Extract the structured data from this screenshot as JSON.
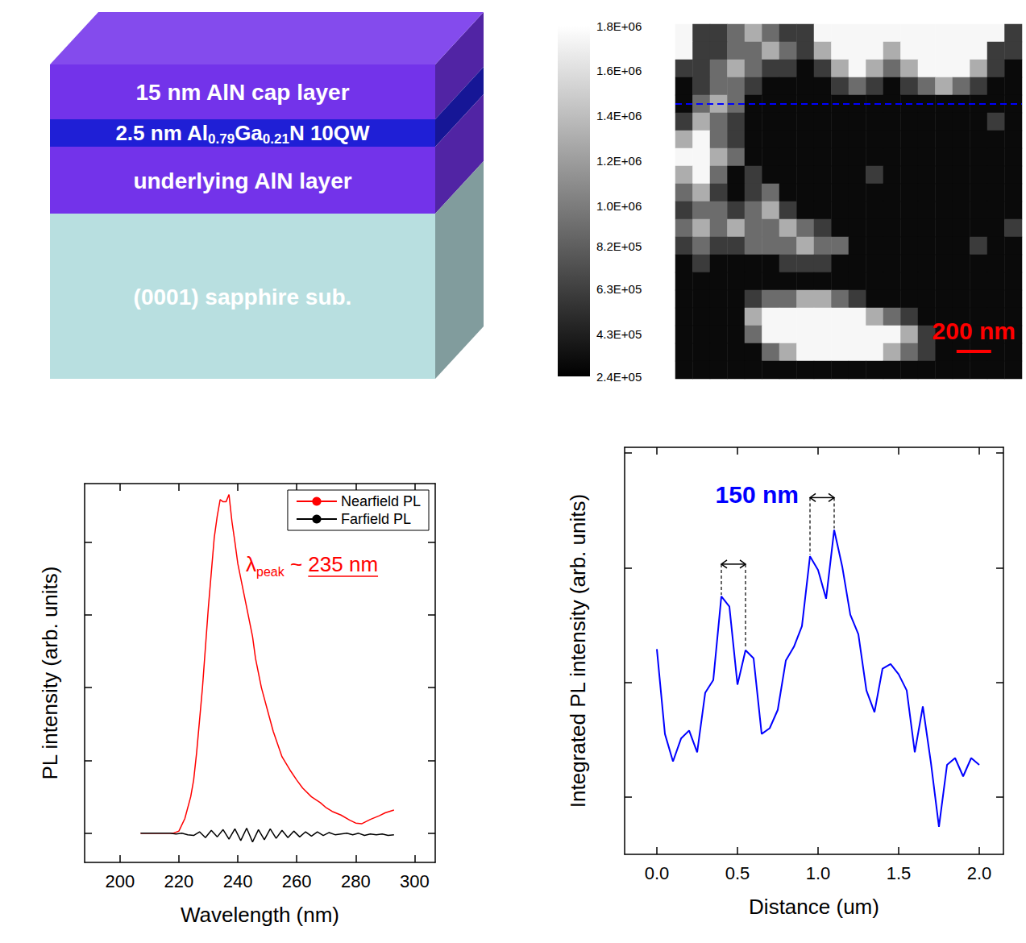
{
  "diagram": {
    "layers": [
      {
        "label_parts": [
          {
            "text": "15 nm AlN cap layer"
          }
        ],
        "color": "#7333ea"
      },
      {
        "label_parts": [
          {
            "text": "2.5 nm Al"
          },
          {
            "text": "0.79",
            "sub": true
          },
          {
            "text": "Ga"
          },
          {
            "text": "0.21",
            "sub": true
          },
          {
            "text": "N 10QW"
          }
        ],
        "color": "#1f1fd6"
      },
      {
        "label_parts": [
          {
            "text": "underlying AlN layer"
          }
        ],
        "color": "#7333ea"
      },
      {
        "label_parts": [
          {
            "text": "(0001) sapphire sub."
          }
        ],
        "color": "#b8dfe0"
      }
    ]
  },
  "chart_data": [
    {
      "type": "heatmap",
      "cell_size_nm": 100,
      "tick_labels": false,
      "cells": [
        [
          1750000,
          600000,
          600000,
          900000,
          1300000,
          900000,
          600000,
          600000,
          1750000,
          1750000,
          1750000,
          1750000,
          1750000,
          1750000,
          1750000,
          1750000,
          1750000,
          1750000,
          1750000,
          600000
        ],
        [
          1750000,
          600000,
          600000,
          900000,
          900000,
          1300000,
          900000,
          600000,
          1300000,
          1750000,
          1750000,
          1750000,
          1300000,
          1750000,
          1750000,
          1750000,
          1750000,
          1750000,
          600000,
          600000
        ],
        [
          600000,
          600000,
          900000,
          1300000,
          900000,
          600000,
          600000,
          300000,
          600000,
          1300000,
          1750000,
          1300000,
          900000,
          1300000,
          1750000,
          1750000,
          1750000,
          1300000,
          600000,
          300000
        ],
        [
          300000,
          600000,
          900000,
          900000,
          600000,
          300000,
          300000,
          300000,
          300000,
          600000,
          900000,
          600000,
          300000,
          600000,
          900000,
          1300000,
          900000,
          600000,
          300000,
          300000
        ],
        [
          300000,
          900000,
          1300000,
          900000,
          300000,
          300000,
          300000,
          300000,
          300000,
          300000,
          300000,
          300000,
          300000,
          300000,
          300000,
          300000,
          300000,
          300000,
          300000,
          300000
        ],
        [
          600000,
          1300000,
          900000,
          600000,
          300000,
          300000,
          300000,
          300000,
          300000,
          300000,
          300000,
          300000,
          300000,
          300000,
          300000,
          300000,
          300000,
          300000,
          600000,
          300000
        ],
        [
          1300000,
          1750000,
          900000,
          600000,
          300000,
          300000,
          300000,
          300000,
          300000,
          300000,
          300000,
          300000,
          300000,
          300000,
          300000,
          300000,
          300000,
          300000,
          300000,
          300000
        ],
        [
          1750000,
          1750000,
          1300000,
          900000,
          300000,
          300000,
          300000,
          300000,
          300000,
          300000,
          300000,
          300000,
          300000,
          300000,
          300000,
          300000,
          300000,
          300000,
          300000,
          300000
        ],
        [
          1300000,
          1750000,
          900000,
          300000,
          600000,
          300000,
          300000,
          300000,
          300000,
          300000,
          300000,
          600000,
          300000,
          300000,
          300000,
          300000,
          300000,
          300000,
          300000,
          300000
        ],
        [
          900000,
          1300000,
          600000,
          300000,
          600000,
          900000,
          300000,
          300000,
          300000,
          300000,
          300000,
          300000,
          300000,
          300000,
          300000,
          300000,
          300000,
          300000,
          300000,
          300000
        ],
        [
          600000,
          900000,
          900000,
          600000,
          900000,
          1300000,
          600000,
          300000,
          300000,
          300000,
          300000,
          300000,
          300000,
          300000,
          300000,
          300000,
          300000,
          300000,
          300000,
          300000
        ],
        [
          900000,
          1300000,
          900000,
          1300000,
          900000,
          900000,
          1300000,
          900000,
          600000,
          300000,
          300000,
          300000,
          300000,
          300000,
          300000,
          300000,
          300000,
          300000,
          300000,
          600000
        ],
        [
          600000,
          900000,
          600000,
          600000,
          900000,
          900000,
          900000,
          1300000,
          900000,
          900000,
          300000,
          300000,
          300000,
          300000,
          300000,
          300000,
          300000,
          600000,
          300000,
          300000
        ],
        [
          300000,
          600000,
          300000,
          300000,
          300000,
          300000,
          600000,
          600000,
          600000,
          300000,
          300000,
          300000,
          300000,
          300000,
          300000,
          300000,
          300000,
          300000,
          300000,
          300000
        ],
        [
          300000,
          300000,
          300000,
          300000,
          300000,
          300000,
          300000,
          300000,
          300000,
          300000,
          300000,
          300000,
          300000,
          300000,
          300000,
          300000,
          300000,
          300000,
          300000,
          300000
        ],
        [
          300000,
          300000,
          300000,
          300000,
          600000,
          900000,
          900000,
          1300000,
          1300000,
          900000,
          600000,
          300000,
          300000,
          300000,
          300000,
          300000,
          300000,
          300000,
          300000,
          300000
        ],
        [
          300000,
          300000,
          300000,
          300000,
          1300000,
          1750000,
          1750000,
          1750000,
          1750000,
          1750000,
          1750000,
          1300000,
          900000,
          600000,
          300000,
          300000,
          300000,
          300000,
          300000,
          300000
        ],
        [
          300000,
          300000,
          300000,
          300000,
          900000,
          1750000,
          1750000,
          1750000,
          1750000,
          1750000,
          1750000,
          1750000,
          1750000,
          1300000,
          600000,
          300000,
          300000,
          300000,
          300000,
          300000
        ],
        [
          300000,
          300000,
          300000,
          300000,
          300000,
          900000,
          1300000,
          1750000,
          1750000,
          1750000,
          1750000,
          1750000,
          1300000,
          900000,
          600000,
          300000,
          300000,
          300000,
          300000,
          300000
        ],
        [
          300000,
          300000,
          300000,
          300000,
          300000,
          300000,
          300000,
          300000,
          300000,
          300000,
          300000,
          300000,
          300000,
          300000,
          300000,
          300000,
          300000,
          300000,
          300000,
          300000
        ]
      ],
      "colorbar": {
        "range": [
          240000,
          1800000
        ],
        "ticks": [
          {
            "value": 1800000,
            "label": "1.8E+06"
          },
          {
            "value": 1600000,
            "label": "1.6E+06"
          },
          {
            "value": 1400000,
            "label": "1.4E+06"
          },
          {
            "value": 1200000,
            "label": "1.2E+06"
          },
          {
            "value": 1000000,
            "label": "1.0E+06"
          },
          {
            "value": 820000,
            "label": "8.2E+05"
          },
          {
            "value": 630000,
            "label": "6.3E+05"
          },
          {
            "value": 430000,
            "label": "4.3E+05"
          },
          {
            "value": 240000,
            "label": "2.4E+05"
          }
        ]
      },
      "scale_bar": {
        "label": "200 nm",
        "length_nm": 200,
        "color": "#ff0000"
      },
      "profile_line": {
        "y_nm": 450,
        "color": "#0000ff",
        "line_style": "dashed"
      }
    },
    {
      "type": "line",
      "x_label": "Wavelength (nm)",
      "y_label": "PL intensity (arb. units)",
      "xlim": [
        188,
        307
      ],
      "xticks": [
        200,
        220,
        240,
        260,
        280,
        300
      ],
      "ylim": [
        -0.4,
        4.8
      ],
      "yticks": [
        0,
        1,
        2,
        3,
        4
      ],
      "tick_labels": "x",
      "legend": "top-right",
      "series": [
        {
          "name": "Nearfield PL",
          "color": "#ff0000",
          "x": [
            207,
            210,
            213,
            216,
            218,
            220,
            222,
            224,
            225,
            226,
            228,
            230,
            232,
            233,
            234,
            235,
            236,
            237,
            238,
            239,
            240,
            242,
            243,
            245,
            246,
            248,
            250,
            252,
            255,
            258,
            260,
            262,
            265,
            268,
            270,
            272,
            275,
            278,
            280,
            282,
            285,
            288,
            290,
            293
          ],
          "values": [
            0,
            0,
            0,
            0,
            0,
            0.03,
            0.2,
            0.5,
            0.73,
            1.1,
            2.0,
            3.1,
            4.06,
            4.35,
            4.58,
            4.55,
            4.55,
            4.65,
            4.28,
            4.0,
            3.7,
            3.3,
            3.1,
            2.7,
            2.4,
            2.0,
            1.7,
            1.4,
            1.05,
            0.85,
            0.73,
            0.62,
            0.5,
            0.42,
            0.35,
            0.3,
            0.25,
            0.18,
            0.14,
            0.13,
            0.19,
            0.24,
            0.28,
            0.32
          ]
        },
        {
          "name": "Farfield PL",
          "color": "#000000",
          "x": [
            207,
            209,
            211,
            213,
            215,
            217,
            219,
            221,
            223,
            225,
            227,
            229,
            231,
            233,
            235,
            237,
            239,
            241,
            243,
            245,
            247,
            249,
            251,
            253,
            255,
            257,
            259,
            261,
            263,
            265,
            267,
            269,
            271,
            273,
            275,
            277,
            279,
            281,
            283,
            285,
            287,
            289,
            291,
            293
          ],
          "values": [
            0,
            0,
            0,
            0,
            0,
            0,
            -0.01,
            0,
            -0.02,
            -0.03,
            0.02,
            -0.06,
            0.04,
            -0.05,
            0.05,
            -0.08,
            0.06,
            -0.1,
            0.07,
            -0.12,
            0.05,
            -0.09,
            0.06,
            -0.07,
            0.04,
            -0.06,
            0.03,
            -0.05,
            0.02,
            -0.04,
            0.02,
            -0.03,
            0.01,
            -0.02,
            -0.01,
            0,
            -0.02,
            0,
            -0.03,
            -0.01,
            -0.02,
            -0.01,
            -0.03,
            -0.02
          ]
        }
      ],
      "annotation": {
        "color": "#ff0000",
        "parts": [
          {
            "text": "λ"
          },
          {
            "text": "peak",
            "sub": true
          },
          {
            "text": " ~ "
          },
          {
            "text": "235 nm",
            "underline": true
          }
        ]
      }
    },
    {
      "type": "line",
      "x_label": "Distance (um)",
      "y_label": "Integrated PL intensity (arb. units)",
      "xlim": [
        -0.2,
        2.15
      ],
      "xticks": [
        {
          "value": 0,
          "label": "0.0"
        },
        0.5,
        {
          "value": 1,
          "label": "1.0"
        },
        1.5,
        {
          "value": 2,
          "label": "2.0"
        }
      ],
      "ylim": [
        0.5,
        4.05
      ],
      "yticks": [
        1,
        2,
        3,
        4
      ],
      "tick_labels": "x",
      "series": [
        {
          "color": "#0000ff",
          "x": [
            0,
            0.05,
            0.1,
            0.15,
            0.2,
            0.25,
            0.3,
            0.35,
            0.4,
            0.45,
            0.5,
            0.55,
            0.6,
            0.65,
            0.7,
            0.75,
            0.8,
            0.85,
            0.9,
            0.95,
            1,
            1.05,
            1.1,
            1.15,
            1.2,
            1.25,
            1.3,
            1.35,
            1.4,
            1.45,
            1.5,
            1.55,
            1.6,
            1.65,
            1.7,
            1.75,
            1.8,
            1.85,
            1.9,
            1.95,
            2
          ],
          "values": [
            2.29,
            1.55,
            1.31,
            1.51,
            1.58,
            1.39,
            1.91,
            2.02,
            2.75,
            2.66,
            1.98,
            2.28,
            2.21,
            1.55,
            1.6,
            1.76,
            2.19,
            2.31,
            2.49,
            3.1,
            2.98,
            2.73,
            3.33,
            3.01,
            2.59,
            2.42,
            1.93,
            1.74,
            2.12,
            2.16,
            2.07,
            1.93,
            1.39,
            1.79,
            1.3,
            0.74,
            1.28,
            1.34,
            1.18,
            1.34,
            1.28
          ]
        }
      ],
      "annotation": {
        "text": "150 nm",
        "color": "#0000ff",
        "pairs": [
          [
            0.4,
            0.55
          ],
          [
            0.95,
            1.1
          ]
        ]
      }
    }
  ]
}
